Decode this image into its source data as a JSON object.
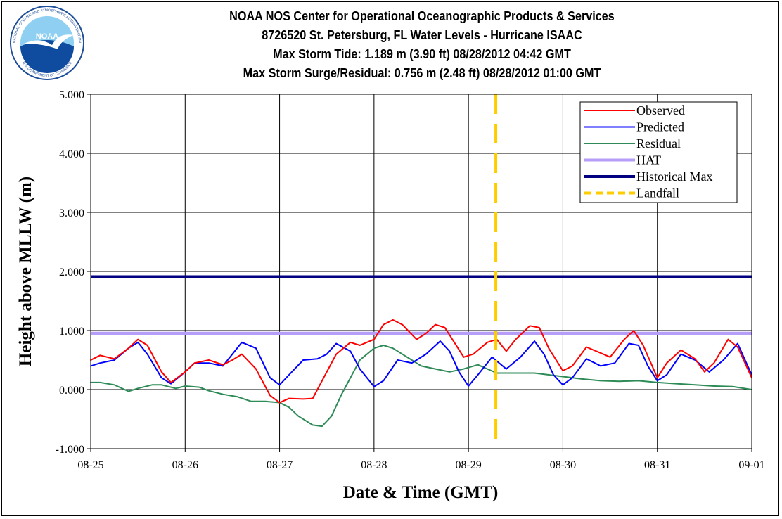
{
  "header": {
    "title_lines": [
      "NOAA NOS Center for Operational Oceanographic Products & Services",
      "8726520 St. Petersburg, FL Water Levels - Hurricane ISAAC",
      "Max Storm Tide: 1.189 m (3.90 ft) 08/28/2012 04:42 GMT",
      "Max Storm Surge/Residual: 0.756 m (2.48 ft) 08/28/2012 01:00 GMT"
    ],
    "logo": {
      "center_text": "NOAA",
      "ring_text_top": "NATIONAL OCEANIC AND ATMOSPHERIC ADMINISTRATION",
      "ring_text_bottom": "U.S. DEPARTMENT OF COMMERCE",
      "colors": {
        "outer": "#1f4e9a",
        "sky": "#8fd0f2",
        "sea": "#0f4c9f",
        "bird": "#ffffff"
      }
    }
  },
  "chart_data": {
    "type": "line",
    "xlabel": "Date & Time (GMT)",
    "ylabel": "Height above MLLW (m)",
    "x_ticks": [
      "08-25",
      "08-26",
      "08-27",
      "08-28",
      "08-29",
      "08-30",
      "08-31",
      "09-01"
    ],
    "xlim_days": [
      25,
      32
    ],
    "ylim": [
      -1.0,
      5.0
    ],
    "y_ticks": [
      "-1.000",
      "0.000",
      "1.000",
      "2.000",
      "3.000",
      "4.000",
      "5.000"
    ],
    "grid": true,
    "legend_position": "top-right",
    "series": [
      {
        "name": "Observed",
        "color": "#ff0000",
        "day": [
          25.0,
          25.1,
          25.25,
          25.4,
          25.5,
          25.6,
          25.75,
          25.85,
          26.0,
          26.1,
          26.25,
          26.4,
          26.5,
          26.6,
          26.75,
          26.9,
          27.0,
          27.1,
          27.25,
          27.35,
          27.5,
          27.6,
          27.75,
          27.85,
          28.0,
          28.1,
          28.2,
          28.3,
          28.45,
          28.55,
          28.65,
          28.75,
          28.85,
          28.95,
          29.05,
          29.2,
          29.3,
          29.4,
          29.5,
          29.65,
          29.75,
          29.85,
          30.0,
          30.1,
          30.25,
          30.4,
          30.5,
          30.65,
          30.75,
          30.85,
          31.0,
          31.1,
          31.25,
          31.4,
          31.5,
          31.6,
          31.75,
          31.85,
          32.0
        ],
        "value": [
          0.5,
          0.58,
          0.52,
          0.7,
          0.85,
          0.75,
          0.3,
          0.12,
          0.3,
          0.45,
          0.5,
          0.42,
          0.5,
          0.6,
          0.35,
          -0.1,
          -0.22,
          -0.15,
          -0.16,
          -0.15,
          0.3,
          0.6,
          0.8,
          0.75,
          0.85,
          1.1,
          1.18,
          1.1,
          0.85,
          0.95,
          1.1,
          1.05,
          0.8,
          0.55,
          0.6,
          0.8,
          0.85,
          0.65,
          0.85,
          1.08,
          1.05,
          0.7,
          0.32,
          0.4,
          0.72,
          0.62,
          0.55,
          0.85,
          1.0,
          0.75,
          0.2,
          0.45,
          0.67,
          0.52,
          0.3,
          0.45,
          0.85,
          0.72,
          0.2
        ]
      },
      {
        "name": "Predicted",
        "color": "#0000ff",
        "day": [
          25.0,
          25.1,
          25.25,
          25.4,
          25.5,
          25.6,
          25.75,
          25.85,
          26.0,
          26.1,
          26.25,
          26.4,
          26.5,
          26.6,
          26.75,
          26.9,
          27.0,
          27.1,
          27.25,
          27.4,
          27.5,
          27.6,
          27.75,
          27.85,
          28.0,
          28.1,
          28.25,
          28.4,
          28.55,
          28.7,
          28.8,
          28.9,
          29.0,
          29.1,
          29.25,
          29.4,
          29.55,
          29.7,
          29.8,
          29.9,
          30.0,
          30.1,
          30.25,
          30.4,
          30.55,
          30.7,
          30.8,
          30.9,
          31.0,
          31.1,
          31.25,
          31.4,
          31.55,
          31.7,
          31.85,
          32.0
        ],
        "value": [
          0.4,
          0.45,
          0.5,
          0.7,
          0.8,
          0.6,
          0.2,
          0.1,
          0.3,
          0.45,
          0.45,
          0.4,
          0.6,
          0.8,
          0.7,
          0.2,
          0.08,
          0.25,
          0.5,
          0.52,
          0.6,
          0.78,
          0.65,
          0.35,
          0.05,
          0.15,
          0.5,
          0.45,
          0.6,
          0.82,
          0.65,
          0.3,
          0.06,
          0.25,
          0.55,
          0.35,
          0.55,
          0.82,
          0.6,
          0.25,
          0.08,
          0.2,
          0.52,
          0.4,
          0.45,
          0.78,
          0.75,
          0.4,
          0.15,
          0.25,
          0.6,
          0.5,
          0.3,
          0.5,
          0.78,
          0.25
        ]
      },
      {
        "name": "Residual",
        "color": "#2e8b57",
        "day": [
          25.0,
          25.1,
          25.25,
          25.4,
          25.5,
          25.65,
          25.75,
          25.9,
          26.0,
          26.15,
          26.25,
          26.4,
          26.55,
          26.7,
          26.85,
          27.0,
          27.1,
          27.2,
          27.3,
          27.35,
          27.45,
          27.55,
          27.65,
          27.75,
          27.85,
          28.0,
          28.1,
          28.2,
          28.35,
          28.5,
          28.65,
          28.8,
          28.95,
          29.1,
          29.3,
          29.5,
          29.7,
          29.85,
          30.0,
          30.2,
          30.4,
          30.6,
          30.8,
          31.0,
          31.2,
          31.4,
          31.6,
          31.8,
          32.0
        ],
        "value": [
          0.12,
          0.12,
          0.08,
          -0.03,
          0.02,
          0.08,
          0.08,
          0.02,
          0.06,
          0.04,
          -0.02,
          -0.08,
          -0.12,
          -0.2,
          -0.2,
          -0.22,
          -0.3,
          -0.45,
          -0.55,
          -0.6,
          -0.62,
          -0.45,
          -0.1,
          0.2,
          0.5,
          0.7,
          0.75,
          0.7,
          0.55,
          0.4,
          0.35,
          0.3,
          0.35,
          0.42,
          0.28,
          0.28,
          0.28,
          0.25,
          0.22,
          0.18,
          0.15,
          0.14,
          0.15,
          0.12,
          0.1,
          0.08,
          0.06,
          0.05,
          0.0
        ]
      },
      {
        "name": "HAT",
        "color": "#b69df8",
        "constant": 0.95
      },
      {
        "name": "Historical Max",
        "color": "#000080",
        "constant": 1.91
      },
      {
        "name": "Landfall",
        "color": "#ffcc00",
        "vertical_day": 29.29
      }
    ]
  }
}
